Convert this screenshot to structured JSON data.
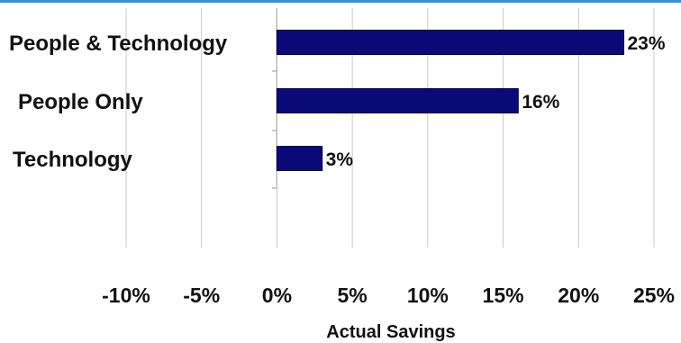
{
  "chart_data": {
    "type": "bar",
    "orientation": "horizontal",
    "categories": [
      "People & Technology",
      "People Only",
      "Technology"
    ],
    "values": [
      23,
      16,
      3
    ],
    "data_labels": [
      "23%",
      "16%",
      "3%"
    ],
    "xlabel": "Actual Savings",
    "xlim": [
      -10,
      25
    ],
    "xticks": [
      -10,
      -5,
      0,
      5,
      10,
      15,
      20,
      25
    ],
    "xtick_labels": [
      "-10%",
      "-5%",
      "0%",
      "5%",
      "10%",
      "15%",
      "20%",
      "25%"
    ],
    "grid": true,
    "bar_color": "#0a0a78"
  }
}
